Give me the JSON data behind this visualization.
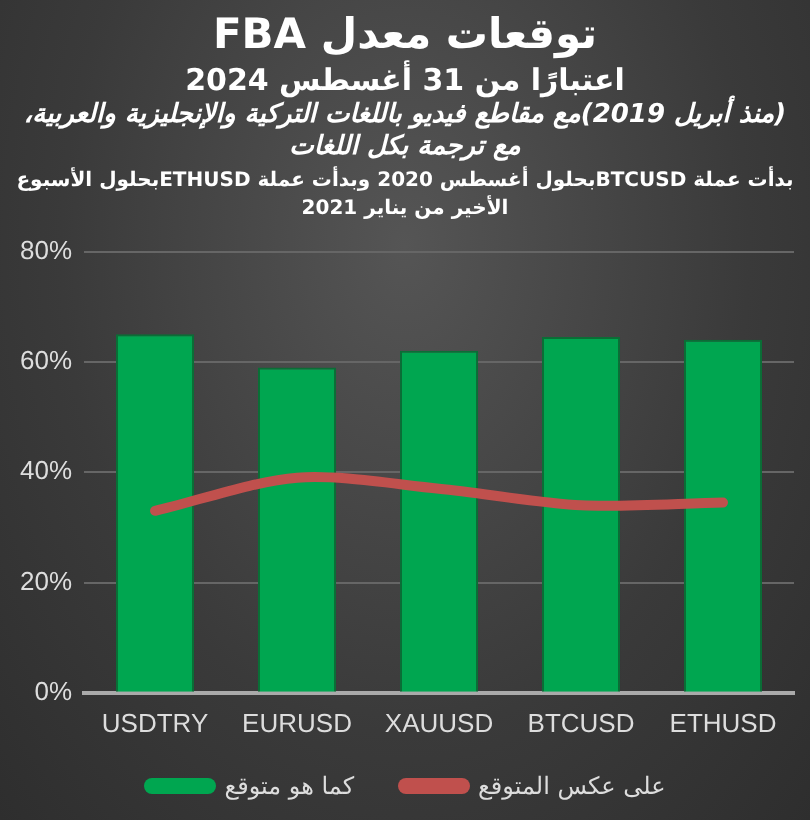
{
  "chart_data": {
    "type": "bar",
    "title": "توقعات معدل FBA",
    "subtitle": "اعتبارًا من 31 أغسطس 2024",
    "annotations": [
      "(منذ أبريل 2019)مع مقاطع فيديو باللغات التركية والإنجليزية والعربية، مع ترجمة بكل اللغات",
      "بدأت عملة BTCUSDبحلول أغسطس 2020 وبدأت عملة ETHUSDبحلول الأسبوع الأخير من يناير 2021"
    ],
    "categories": [
      "USDTRY",
      "EURUSD",
      "XAUUSD",
      "BTCUSD",
      "ETHUSD"
    ],
    "series": [
      {
        "name": "كما هو متوقع",
        "color": "#00a650",
        "values": [
          65,
          59,
          62,
          64.5,
          64
        ]
      },
      {
        "name": "على عكس المتوقع",
        "type": "line",
        "color": "#c0504d",
        "values": [
          33,
          39,
          37,
          34,
          34.5
        ]
      }
    ],
    "ylim": [
      0,
      80
    ],
    "yticks": [
      {
        "value": 0,
        "label": "0%"
      },
      {
        "value": 20,
        "label": "20%"
      },
      {
        "value": 40,
        "label": "40%"
      },
      {
        "value": 60,
        "label": "60%"
      },
      {
        "value": 80,
        "label": "80%"
      }
    ],
    "grid": "y",
    "legend": "bottom",
    "marker": "none"
  }
}
